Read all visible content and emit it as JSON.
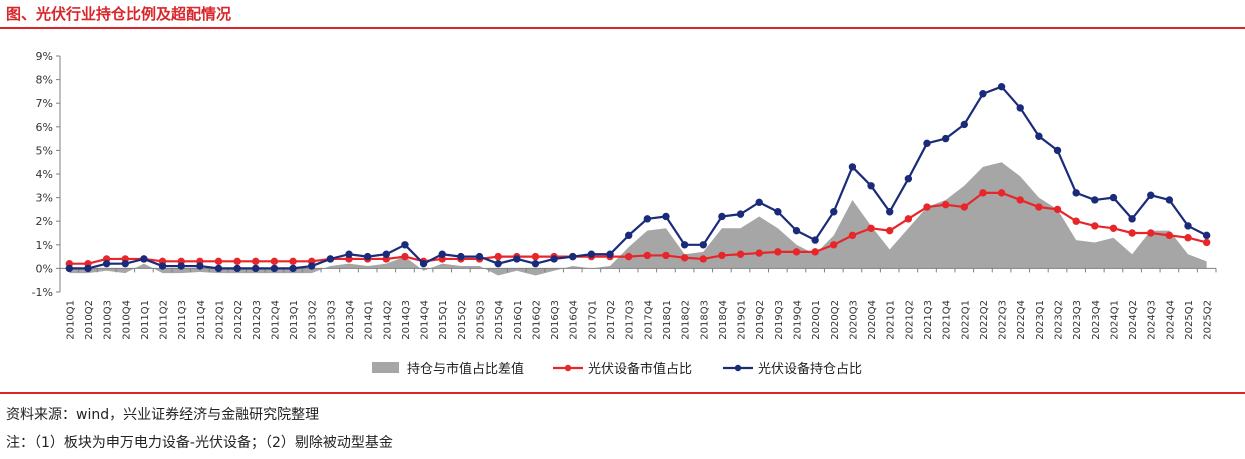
{
  "title": "图、光伏行业持仓比例及超配情况",
  "source": "资料来源：wind，兴业证券经济与金融研究院整理",
  "note": "注：（1）板块为申万电力设备-光伏设备；（2）剔除被动型基金",
  "chart_data": {
    "type": "line",
    "ylim": [
      -1,
      9
    ],
    "yticks": [
      -1,
      0,
      1,
      2,
      3,
      4,
      5,
      6,
      7,
      8,
      9
    ],
    "ytick_labels": [
      "-1%",
      "0%",
      "1%",
      "2%",
      "3%",
      "4%",
      "5%",
      "6%",
      "7%",
      "8%",
      "9%"
    ],
    "y_unit": "%",
    "x": [
      "2010Q1",
      "2010Q2",
      "2010Q3",
      "2010Q4",
      "2011Q1",
      "2011Q2",
      "2011Q3",
      "2011Q4",
      "2012Q1",
      "2012Q2",
      "2012Q3",
      "2012Q4",
      "2013Q1",
      "2013Q2",
      "2013Q3",
      "2013Q4",
      "2014Q1",
      "2014Q2",
      "2014Q3",
      "2014Q4",
      "2015Q1",
      "2015Q2",
      "2015Q3",
      "2015Q4",
      "2016Q1",
      "2016Q2",
      "2016Q3",
      "2016Q4",
      "2017Q1",
      "2017Q2",
      "2017Q3",
      "2017Q4",
      "2018Q1",
      "2018Q2",
      "2018Q3",
      "2018Q4",
      "2019Q1",
      "2019Q2",
      "2019Q3",
      "2019Q4",
      "2020Q1",
      "2020Q2",
      "2020Q3",
      "2020Q4",
      "2021Q1",
      "2021Q2",
      "2021Q3",
      "2021Q4",
      "2022Q1",
      "2022Q2",
      "2022Q3",
      "2022Q4",
      "2023Q1",
      "2023Q2",
      "2023Q3",
      "2023Q4",
      "2024Q1",
      "2024Q2",
      "2024Q3",
      "2024Q4",
      "2025Q1",
      "2025Q2"
    ],
    "legend_position": "bottom",
    "grid": false,
    "series": [
      {
        "name": "持仓与市值占比差值",
        "kind": "area",
        "color": "#a6a6a6",
        "values": [
          -0.2,
          -0.2,
          -0.1,
          -0.2,
          0.2,
          -0.2,
          -0.2,
          -0.15,
          -0.2,
          -0.2,
          -0.2,
          -0.2,
          -0.2,
          -0.2,
          0.1,
          0.2,
          0.1,
          0.2,
          0.5,
          -0.1,
          0.2,
          0.1,
          0.1,
          -0.3,
          -0.1,
          -0.3,
          -0.1,
          0.1,
          0.0,
          0.1,
          0.9,
          1.6,
          1.7,
          0.6,
          0.7,
          1.7,
          1.7,
          2.2,
          1.7,
          1.0,
          0.6,
          1.4,
          2.9,
          1.8,
          0.8,
          1.7,
          2.6,
          2.9,
          3.5,
          4.3,
          4.5,
          3.9,
          3.0,
          2.5,
          1.2,
          1.1,
          1.3,
          0.6,
          1.6,
          1.6,
          0.6,
          0.3
        ]
      },
      {
        "name": "光伏设备市值占比",
        "kind": "line",
        "color": "#e8262a",
        "values": [
          0.2,
          0.2,
          0.4,
          0.4,
          0.4,
          0.3,
          0.3,
          0.3,
          0.3,
          0.3,
          0.3,
          0.3,
          0.3,
          0.3,
          0.4,
          0.4,
          0.4,
          0.4,
          0.5,
          0.3,
          0.4,
          0.4,
          0.4,
          0.5,
          0.5,
          0.5,
          0.5,
          0.5,
          0.5,
          0.5,
          0.5,
          0.55,
          0.55,
          0.45,
          0.4,
          0.55,
          0.6,
          0.65,
          0.7,
          0.7,
          0.7,
          1.0,
          1.4,
          1.7,
          1.6,
          2.1,
          2.6,
          2.7,
          2.6,
          3.2,
          3.2,
          2.9,
          2.6,
          2.5,
          2.0,
          1.8,
          1.7,
          1.5,
          1.5,
          1.4,
          1.3,
          1.1
        ]
      },
      {
        "name": "光伏设备持仓占比",
        "kind": "line",
        "color": "#1a2b7a",
        "values": [
          0.0,
          0.0,
          0.2,
          0.2,
          0.4,
          0.1,
          0.1,
          0.1,
          0.0,
          0.0,
          0.0,
          0.0,
          0.0,
          0.1,
          0.4,
          0.6,
          0.5,
          0.6,
          1.0,
          0.2,
          0.6,
          0.5,
          0.5,
          0.2,
          0.4,
          0.2,
          0.4,
          0.5,
          0.6,
          0.6,
          1.4,
          2.1,
          2.2,
          1.0,
          1.0,
          2.2,
          2.3,
          2.8,
          2.4,
          1.6,
          1.2,
          2.4,
          4.3,
          3.5,
          2.4,
          3.8,
          5.3,
          5.5,
          6.1,
          7.4,
          7.7,
          6.8,
          5.6,
          5.0,
          3.2,
          2.9,
          3.0,
          2.1,
          3.1,
          2.9,
          1.8,
          1.4
        ]
      }
    ]
  }
}
